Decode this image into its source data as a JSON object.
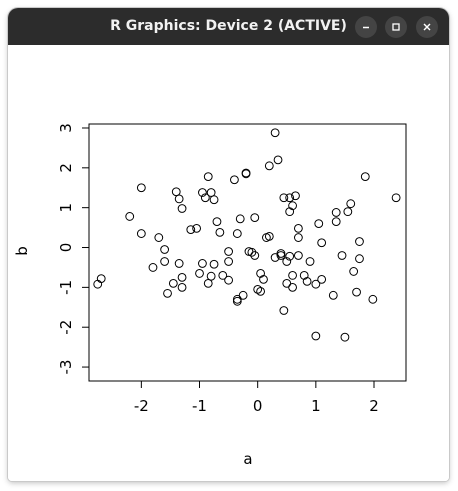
{
  "window": {
    "title": "R Graphics: Device 2 (ACTIVE)",
    "controls": [
      "minimize",
      "maximize",
      "close"
    ]
  },
  "colors": {
    "titlebar": "#2c2c2c",
    "button": "#444444",
    "ink": "#000000"
  },
  "chart_data": {
    "type": "scatter",
    "xlabel": "a",
    "ylabel": "b",
    "xlim": [
      -2.9,
      2.55
    ],
    "ylim": [
      -3.35,
      3.1
    ],
    "x_ticks": [
      -2,
      -1,
      0,
      1,
      2
    ],
    "x_tick_labels": [
      "-2",
      "-1",
      "0",
      "1",
      "2"
    ],
    "y_ticks": [
      -3,
      -2,
      -1,
      0,
      1,
      2,
      3
    ],
    "y_tick_labels": [
      "-3",
      "-2",
      "-1",
      "0",
      "1",
      "2",
      "3"
    ],
    "grid": false,
    "points": [
      [
        -2.75,
        -0.92
      ],
      [
        -2.69,
        -0.78
      ],
      [
        -2.2,
        0.78
      ],
      [
        -2.0,
        1.5
      ],
      [
        -2.0,
        0.35
      ],
      [
        -1.7,
        0.25
      ],
      [
        -1.6,
        -0.05
      ],
      [
        -1.6,
        -0.35
      ],
      [
        -1.55,
        -1.15
      ],
      [
        -1.8,
        -0.5
      ],
      [
        -1.45,
        -0.9
      ],
      [
        -1.4,
        1.4
      ],
      [
        -1.35,
        1.22
      ],
      [
        -1.35,
        -0.4
      ],
      [
        -1.3,
        -0.75
      ],
      [
        -1.3,
        -1.0
      ],
      [
        -1.3,
        0.98
      ],
      [
        -1.15,
        0.45
      ],
      [
        -1.05,
        0.48
      ],
      [
        -1.0,
        -0.65
      ],
      [
        -0.95,
        1.38
      ],
      [
        -0.95,
        -0.4
      ],
      [
        -0.9,
        1.25
      ],
      [
        -0.85,
        1.78
      ],
      [
        -0.85,
        -0.9
      ],
      [
        -0.8,
        1.38
      ],
      [
        -0.8,
        -0.72
      ],
      [
        -0.75,
        1.2
      ],
      [
        -0.75,
        -0.42
      ],
      [
        -0.7,
        0.65
      ],
      [
        -0.65,
        0.38
      ],
      [
        -0.6,
        -0.7
      ],
      [
        -0.5,
        -0.1
      ],
      [
        -0.5,
        -0.35
      ],
      [
        -0.5,
        -0.82
      ],
      [
        -0.4,
        1.7
      ],
      [
        -0.35,
        0.35
      ],
      [
        -0.35,
        -1.3
      ],
      [
        -0.35,
        -1.35
      ],
      [
        -0.3,
        0.72
      ],
      [
        -0.25,
        -1.2
      ],
      [
        -0.2,
        1.85
      ],
      [
        -0.2,
        1.87
      ],
      [
        -0.15,
        -0.1
      ],
      [
        -0.1,
        -0.12
      ],
      [
        -0.05,
        0.75
      ],
      [
        -0.05,
        -0.2
      ],
      [
        0.0,
        -1.05
      ],
      [
        0.05,
        -0.65
      ],
      [
        0.05,
        -1.1
      ],
      [
        0.1,
        -0.8
      ],
      [
        0.15,
        0.25
      ],
      [
        0.2,
        0.28
      ],
      [
        0.2,
        2.05
      ],
      [
        0.3,
        2.88
      ],
      [
        0.3,
        -0.25
      ],
      [
        0.35,
        2.2
      ],
      [
        0.4,
        -0.2
      ],
      [
        0.4,
        -0.15
      ],
      [
        0.45,
        1.25
      ],
      [
        0.45,
        -1.58
      ],
      [
        0.5,
        -0.35
      ],
      [
        0.5,
        -0.9
      ],
      [
        0.55,
        1.25
      ],
      [
        0.55,
        0.9
      ],
      [
        0.55,
        -0.22
      ],
      [
        0.6,
        1.05
      ],
      [
        0.6,
        -0.7
      ],
      [
        0.6,
        -1.0
      ],
      [
        0.65,
        1.3
      ],
      [
        0.7,
        0.48
      ],
      [
        0.7,
        0.25
      ],
      [
        0.7,
        -0.2
      ],
      [
        0.8,
        -0.7
      ],
      [
        0.85,
        -0.85
      ],
      [
        0.9,
        -0.35
      ],
      [
        1.0,
        -0.92
      ],
      [
        1.0,
        -2.22
      ],
      [
        1.05,
        0.6
      ],
      [
        1.1,
        0.12
      ],
      [
        1.1,
        -0.8
      ],
      [
        1.3,
        -1.2
      ],
      [
        1.35,
        0.88
      ],
      [
        1.35,
        0.65
      ],
      [
        1.45,
        -0.2
      ],
      [
        1.5,
        -2.25
      ],
      [
        1.55,
        0.9
      ],
      [
        1.6,
        1.1
      ],
      [
        1.65,
        -0.6
      ],
      [
        1.7,
        -1.12
      ],
      [
        1.75,
        -0.28
      ],
      [
        1.75,
        0.15
      ],
      [
        1.85,
        1.78
      ],
      [
        1.98,
        -1.3
      ],
      [
        2.38,
        1.25
      ]
    ]
  }
}
